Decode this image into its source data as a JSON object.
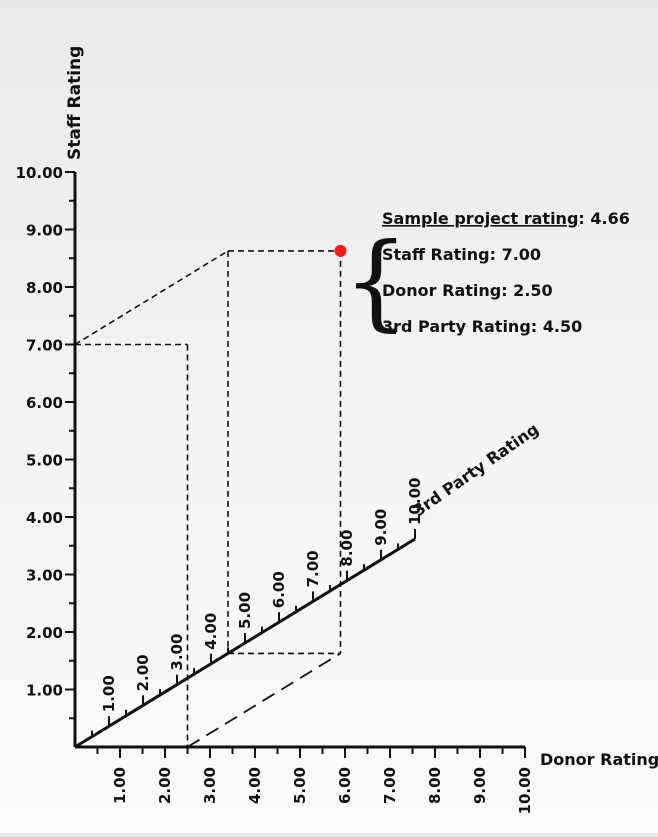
{
  "chart_data": {
    "type": "scatter",
    "projection": "3d-oblique",
    "axes": {
      "staff": {
        "label": "Staff Rating",
        "range": [
          0,
          10
        ],
        "ticks": [
          "1.00",
          "2.00",
          "3.00",
          "4.00",
          "5.00",
          "6.00",
          "7.00",
          "8.00",
          "9.00",
          "10.00"
        ]
      },
      "donor": {
        "label": "Donor Rating",
        "range": [
          0,
          10
        ],
        "ticks": [
          "1.00",
          "2.00",
          "3.00",
          "4.00",
          "5.00",
          "6.00",
          "7.00",
          "8.00",
          "9.00",
          "10.00"
        ]
      },
      "third_party": {
        "label": "3rd Party Rating",
        "range": [
          0,
          10
        ],
        "ticks": [
          "1.00",
          "2.00",
          "3.00",
          "4.00",
          "5.00",
          "6.00",
          "7.00",
          "8.00",
          "9.00",
          "10.00"
        ]
      }
    },
    "point": {
      "staff": 7.0,
      "donor": 2.5,
      "third_party": 4.5,
      "color": "#ff1a1a"
    },
    "annotation": {
      "title_label": "Sample project rating",
      "title_value": ": 4.66",
      "lines": [
        "Staff Rating: 7.00",
        "Donor Rating: 2.50",
        "3rd Party Rating: 4.50"
      ]
    },
    "grid": false
  }
}
